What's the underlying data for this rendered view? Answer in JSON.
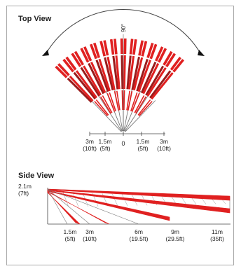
{
  "top_view": {
    "title": "Top View",
    "angle_label": "90°",
    "center_label": "0",
    "distance_labels": [
      {
        "m": "3m",
        "ft": "(10ft)"
      },
      {
        "m": "1.5m",
        "ft": "(5ft)"
      },
      {
        "m": "1.5m",
        "ft": "(5ft)"
      },
      {
        "m": "3m",
        "ft": "(10ft)"
      }
    ]
  },
  "side_view": {
    "title": "Side View",
    "height_m": "2.1m",
    "height_ft": "(7ft)",
    "distance_labels": [
      {
        "m": "1.5m",
        "ft": "(5ft)"
      },
      {
        "m": "3m",
        "ft": "(10ft)"
      },
      {
        "m": "6m",
        "ft": "(19.5ft)"
      },
      {
        "m": "9m",
        "ft": "(29.5ft)"
      },
      {
        "m": "11m",
        "ft": "(35ft)"
      }
    ]
  },
  "colors": {
    "beam_red": "#e02020",
    "beam_dark": "#9a1c1c",
    "line": "#444444"
  }
}
